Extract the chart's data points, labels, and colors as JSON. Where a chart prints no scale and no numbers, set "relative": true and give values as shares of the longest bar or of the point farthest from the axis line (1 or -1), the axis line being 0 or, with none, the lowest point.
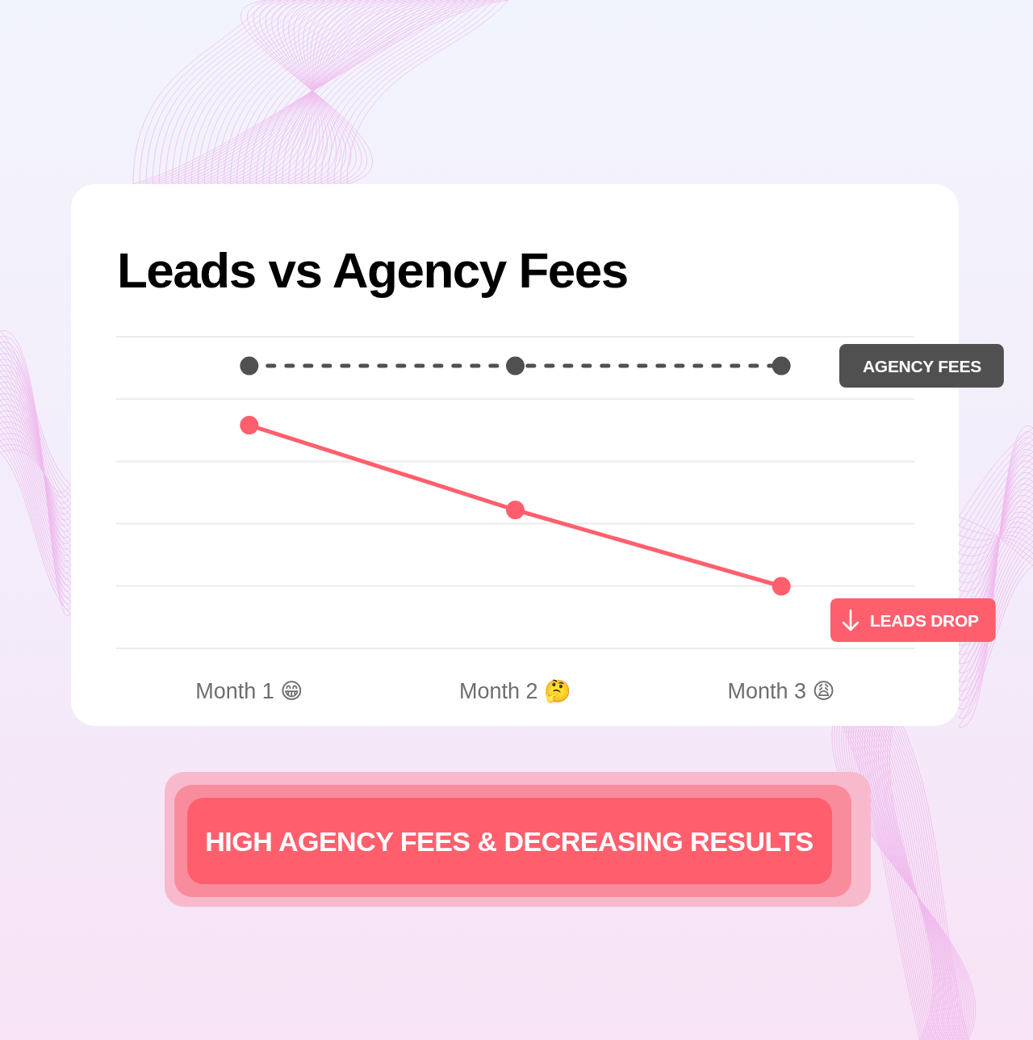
{
  "chart_data": {
    "type": "line",
    "title": "Leads vs Agency Fees",
    "categories": [
      "Month 1 😁",
      "Month 2 🤔",
      "Month 3 😩"
    ],
    "relative": true,
    "series": [
      {
        "name": "AGENCY FEES",
        "color": "#505050",
        "values": [
          1,
          1,
          1
        ],
        "line_style": "dashed"
      },
      {
        "name": "LEADS DROP",
        "color": "#ff5f6d",
        "values": [
          0.79,
          0.49,
          0.22
        ]
      }
    ],
    "line_style": "solid",
    "marker": "circle",
    "grid": "y",
    "annotations": [
      "HIGH AGENCY FEES & DECREASING RESULTS"
    ]
  }
}
